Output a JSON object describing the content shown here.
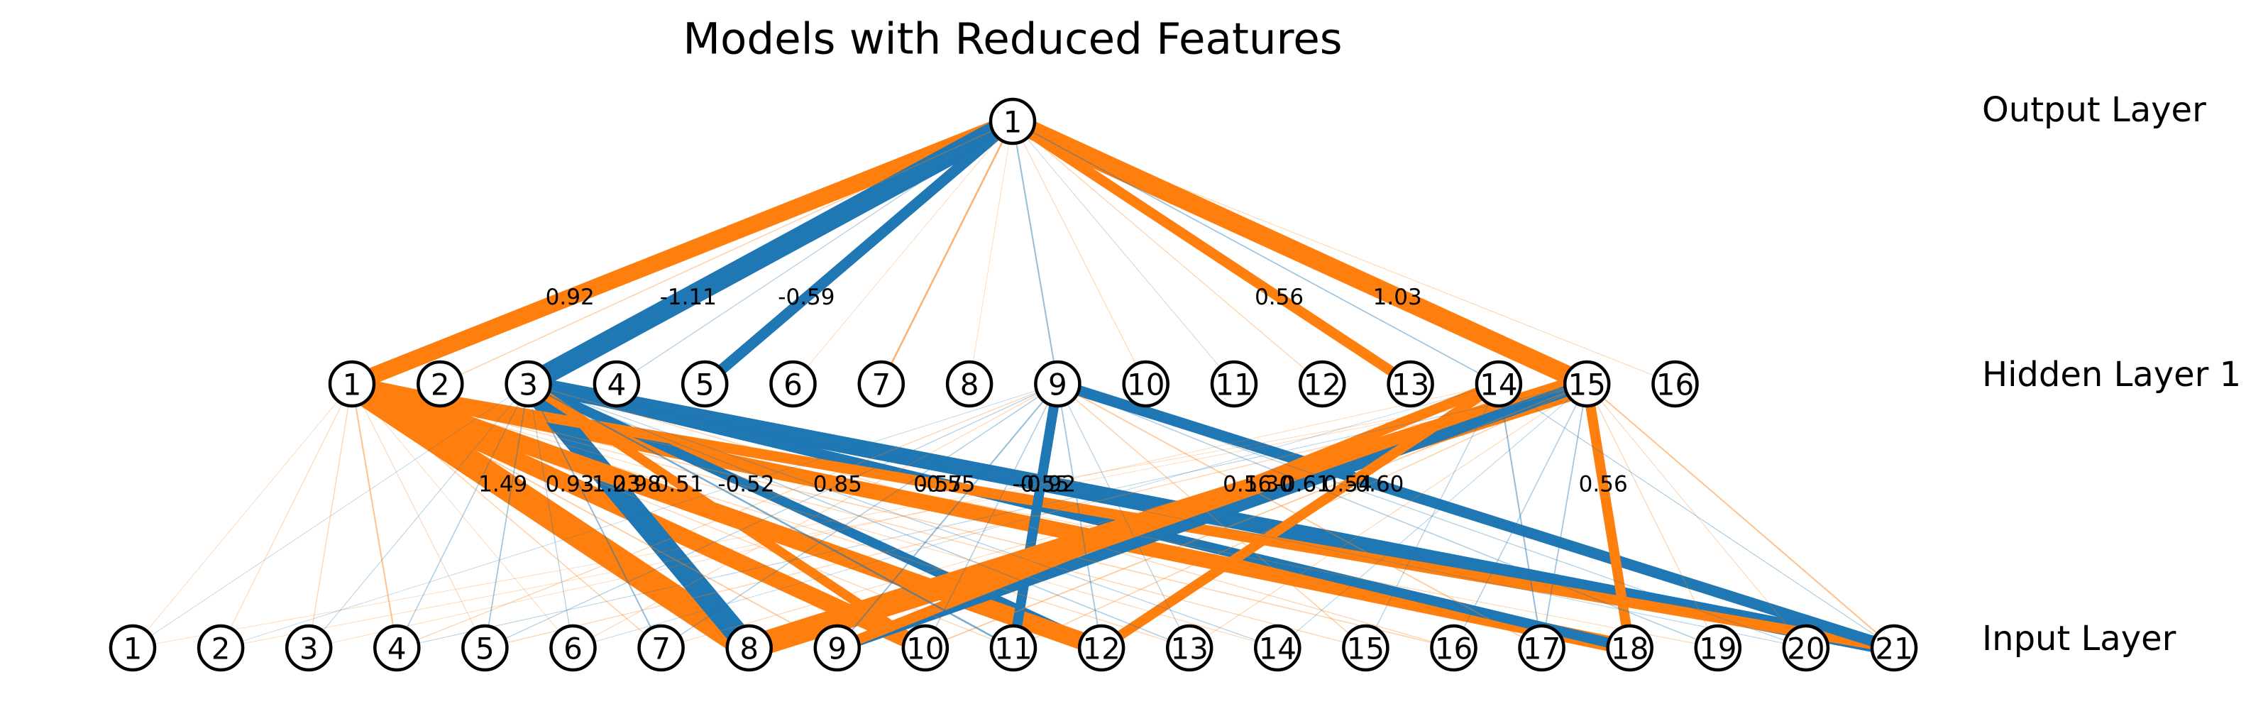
{
  "title": "Models with Reduced Features",
  "colors": {
    "positive": "#ff7f0e",
    "negative": "#1f77b4"
  },
  "layers": [
    {
      "id": "input",
      "label": "Input Layer",
      "nodes": [
        "1",
        "2",
        "3",
        "4",
        "5",
        "6",
        "7",
        "8",
        "9",
        "10",
        "11",
        "12",
        "13",
        "14",
        "15",
        "16",
        "17",
        "18",
        "19",
        "20",
        "21"
      ]
    },
    {
      "id": "hidden1",
      "label": "Hidden Layer 1",
      "nodes": [
        "1",
        "2",
        "3",
        "4",
        "5",
        "6",
        "7",
        "8",
        "9",
        "10",
        "11",
        "12",
        "13",
        "14",
        "15",
        "16"
      ]
    },
    {
      "id": "output",
      "label": "Output Layer",
      "nodes": [
        "1"
      ]
    }
  ],
  "edges": [
    {
      "from": "h1",
      "to": "o1",
      "weight": 0.92,
      "label": "0.92"
    },
    {
      "from": "h3",
      "to": "o1",
      "weight": -1.11,
      "label": "-1.11"
    },
    {
      "from": "h5",
      "to": "o1",
      "weight": -0.59,
      "label": "-0.59"
    },
    {
      "from": "h13",
      "to": "o1",
      "weight": 0.56,
      "label": "0.56"
    },
    {
      "from": "h15",
      "to": "o1",
      "weight": 1.03,
      "label": "1.03"
    },
    {
      "from": "h2",
      "to": "o1",
      "weight": 0.06
    },
    {
      "from": "h4",
      "to": "o1",
      "weight": -0.05
    },
    {
      "from": "h6",
      "to": "o1",
      "weight": 0.02
    },
    {
      "from": "h7",
      "to": "o1",
      "weight": 0.1
    },
    {
      "from": "h8",
      "to": "o1",
      "weight": 0.03
    },
    {
      "from": "h9",
      "to": "o1",
      "weight": -0.08
    },
    {
      "from": "h10",
      "to": "o1",
      "weight": 0.04
    },
    {
      "from": "h11",
      "to": "o1",
      "weight": -0.03
    },
    {
      "from": "h12",
      "to": "o1",
      "weight": 0.05
    },
    {
      "from": "h14",
      "to": "o1",
      "weight": -0.07
    },
    {
      "from": "h16",
      "to": "o1",
      "weight": 0.04
    },
    {
      "from": "i8",
      "to": "h1",
      "weight": 1.49,
      "label": "1.49"
    },
    {
      "from": "i18",
      "to": "h1",
      "weight": 0.85,
      "label": "0.85"
    },
    {
      "from": "i10",
      "to": "h1",
      "weight": 0.93,
      "label": "0.93"
    },
    {
      "from": "i8",
      "to": "h3",
      "weight": -1.23,
      "label": "-1.23"
    },
    {
      "from": "i12",
      "to": "h3",
      "weight": -0.52,
      "label": "-0.52"
    },
    {
      "from": "i21",
      "to": "h3",
      "weight": -0.92,
      "label": "-0.92"
    },
    {
      "from": "i18",
      "to": "h3",
      "weight": -0.55,
      "label": "-0.55"
    },
    {
      "from": "i10",
      "to": "h3",
      "weight": 0.51,
      "label": "0.51"
    },
    {
      "from": "i21",
      "to": "h1",
      "weight": 0.57,
      "label": "0.57"
    },
    {
      "from": "i12",
      "to": "h1",
      "weight": 0.98,
      "label": "0.98"
    },
    {
      "from": "i11",
      "to": "h9",
      "weight": -0.55,
      "label": "-0.55"
    },
    {
      "from": "i21",
      "to": "h9",
      "weight": -0.6,
      "label": "-0.60"
    },
    {
      "from": "i8",
      "to": "h15",
      "weight": 1.3,
      "label": "1.30"
    },
    {
      "from": "i9",
      "to": "h15",
      "weight": -0.61,
      "label": "-0.61"
    },
    {
      "from": "i12",
      "to": "h14",
      "weight": 0.54,
      "label": "0.54"
    },
    {
      "from": "i18",
      "to": "h15",
      "weight": 0.56,
      "label": "0.56"
    },
    {
      "from": "i9",
      "to": "h14",
      "weight": 0.56,
      "label": "0.56"
    },
    {
      "from": "i1",
      "to": "h1",
      "weight": 0.03
    },
    {
      "from": "i1",
      "to": "h3",
      "weight": -0.02
    },
    {
      "from": "i1",
      "to": "h15",
      "weight": 0.03
    },
    {
      "from": "i2",
      "to": "h1",
      "weight": 0.04
    },
    {
      "from": "i2",
      "to": "h9",
      "weight": -0.03
    },
    {
      "from": "i2",
      "to": "h15",
      "weight": 0.02
    },
    {
      "from": "i3",
      "to": "h1",
      "weight": 0.05
    },
    {
      "from": "i3",
      "to": "h3",
      "weight": -0.04
    },
    {
      "from": "i3",
      "to": "h14",
      "weight": 0.03
    },
    {
      "from": "i4",
      "to": "h1",
      "weight": 0.08
    },
    {
      "from": "i4",
      "to": "h3",
      "weight": -0.06
    },
    {
      "from": "i4",
      "to": "h9",
      "weight": 0.05
    },
    {
      "from": "i4",
      "to": "h15",
      "weight": -0.04
    },
    {
      "from": "i5",
      "to": "h1",
      "weight": 0.04
    },
    {
      "from": "i5",
      "to": "h3",
      "weight": -0.07
    },
    {
      "from": "i5",
      "to": "h9",
      "weight": -0.05
    },
    {
      "from": "i5",
      "to": "h15",
      "weight": 0.05
    },
    {
      "from": "i6",
      "to": "h1",
      "weight": 0.03
    },
    {
      "from": "i6",
      "to": "h3",
      "weight": -0.05
    },
    {
      "from": "i6",
      "to": "h9",
      "weight": 0.04
    },
    {
      "from": "i6",
      "to": "h14",
      "weight": -0.03
    },
    {
      "from": "i7",
      "to": "h1",
      "weight": 0.06
    },
    {
      "from": "i7",
      "to": "h3",
      "weight": -0.08
    },
    {
      "from": "i7",
      "to": "h9",
      "weight": -0.06
    },
    {
      "from": "i7",
      "to": "h15",
      "weight": 0.04
    },
    {
      "from": "i9",
      "to": "h1",
      "weight": 0.07
    },
    {
      "from": "i9",
      "to": "h9",
      "weight": -0.08
    },
    {
      "from": "i10",
      "to": "h9",
      "weight": -0.06
    },
    {
      "from": "i10",
      "to": "h15",
      "weight": 0.07
    },
    {
      "from": "i11",
      "to": "h1",
      "weight": 0.05
    },
    {
      "from": "i11",
      "to": "h3",
      "weight": -0.1
    },
    {
      "from": "i11",
      "to": "h15",
      "weight": 0.06
    },
    {
      "from": "i12",
      "to": "h9",
      "weight": -0.07
    },
    {
      "from": "i13",
      "to": "h1",
      "weight": 0.05
    },
    {
      "from": "i13",
      "to": "h3",
      "weight": -0.06
    },
    {
      "from": "i13",
      "to": "h9",
      "weight": -0.05
    },
    {
      "from": "i13",
      "to": "h15",
      "weight": 0.04
    },
    {
      "from": "i14",
      "to": "h1",
      "weight": 0.04
    },
    {
      "from": "i14",
      "to": "h3",
      "weight": -0.05
    },
    {
      "from": "i14",
      "to": "h15",
      "weight": -0.04
    },
    {
      "from": "i15",
      "to": "h1",
      "weight": 0.05
    },
    {
      "from": "i15",
      "to": "h9",
      "weight": 0.06
    },
    {
      "from": "i15",
      "to": "h14",
      "weight": -0.05
    },
    {
      "from": "i16",
      "to": "h1",
      "weight": 0.06
    },
    {
      "from": "i16",
      "to": "h3",
      "weight": 0.05
    },
    {
      "from": "i16",
      "to": "h15",
      "weight": -0.06
    },
    {
      "from": "i17",
      "to": "h9",
      "weight": 0.07
    },
    {
      "from": "i17",
      "to": "h14",
      "weight": -0.08
    },
    {
      "from": "i17",
      "to": "h15",
      "weight": -0.07
    },
    {
      "from": "i19",
      "to": "h9",
      "weight": -0.06
    },
    {
      "from": "i19",
      "to": "h15",
      "weight": 0.05
    },
    {
      "from": "i19",
      "to": "h1",
      "weight": 0.04
    },
    {
      "from": "i20",
      "to": "h15",
      "weight": 0.04
    },
    {
      "from": "i20",
      "to": "h9",
      "weight": -0.05
    },
    {
      "from": "i20",
      "to": "h3",
      "weight": -0.04
    },
    {
      "from": "i21",
      "to": "h15",
      "weight": 0.08
    },
    {
      "from": "i21",
      "to": "h14",
      "weight": -0.05
    }
  ]
}
